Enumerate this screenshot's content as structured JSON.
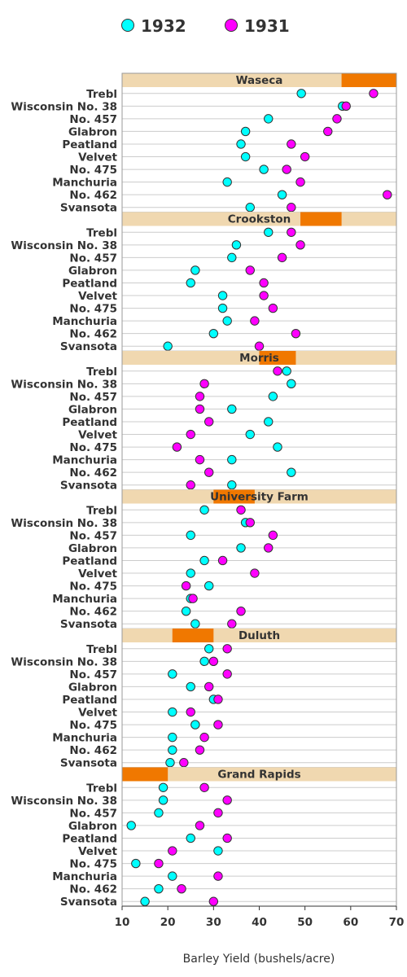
{
  "chart_data": {
    "type": "scatter",
    "xlabel": "Barley Yield (bushels/acre)",
    "xlim": [
      10,
      70
    ],
    "xticks": [
      10,
      20,
      30,
      40,
      50,
      60,
      70
    ],
    "grid": true,
    "legend_position": "top",
    "colors": {
      "1932": "#00ffff",
      "1931": "#ff00ff",
      "strip_bg": "#f0d8b0",
      "strip_marker": "#f07800",
      "grid": "#cccccc",
      "marker_stroke": "#333333"
    },
    "series": [
      {
        "name": "1932",
        "color": "#00ffff"
      },
      {
        "name": "1931",
        "color": "#ff00ff"
      }
    ],
    "varieties": [
      "Trebl",
      "Wisconsin No. 38",
      "No. 457",
      "Glabron",
      "Peatland",
      "Velvet",
      "No. 475",
      "Manchuria",
      "No. 462",
      "Svansota"
    ],
    "panels": [
      {
        "site": "Waseca",
        "strip_range": [
          58,
          70
        ],
        "values_1932": [
          49.2,
          58.2,
          42.0,
          37.0,
          36.0,
          37.0,
          41.0,
          33.0,
          45.0,
          38.0
        ],
        "values_1931": [
          65.0,
          59.0,
          57.0,
          55.0,
          47.0,
          50.0,
          46.0,
          49.0,
          68.0,
          47.0
        ]
      },
      {
        "site": "Crookston",
        "strip_range": [
          49,
          58
        ],
        "values_1932": [
          42.0,
          35.0,
          34.0,
          26.0,
          25.0,
          32.0,
          32.0,
          33.0,
          30.0,
          20.0
        ],
        "values_1931": [
          47.0,
          49.0,
          45.0,
          38.0,
          41.0,
          41.0,
          43.0,
          39.0,
          48.0,
          40.0
        ]
      },
      {
        "site": "Morris",
        "strip_range": [
          40,
          48
        ],
        "values_1932": [
          46.0,
          47.0,
          43.0,
          34.0,
          42.0,
          38.0,
          44.0,
          34.0,
          47.0,
          34.0
        ],
        "values_1931": [
          44.0,
          28.0,
          27.0,
          27.0,
          29.0,
          25.0,
          22.0,
          27.0,
          29.0,
          25.0
        ]
      },
      {
        "site": "University Farm",
        "strip_range": [
          30,
          39
        ],
        "values_1932": [
          28.0,
          37.0,
          25.0,
          36.0,
          28.0,
          25.0,
          29.0,
          25.0,
          24.0,
          26.0
        ],
        "values_1931": [
          36.0,
          38.0,
          43.0,
          42.0,
          32.0,
          39.0,
          24.0,
          25.5,
          36.0,
          34.0
        ]
      },
      {
        "site": "Duluth",
        "strip_range": [
          21,
          30
        ],
        "values_1932": [
          29.0,
          28.0,
          21.0,
          25.0,
          30.0,
          21.0,
          26.0,
          21.0,
          21.0,
          20.5
        ],
        "values_1931": [
          33.0,
          30.0,
          33.0,
          29.0,
          31.0,
          25.0,
          31.0,
          28.0,
          27.0,
          23.5
        ]
      },
      {
        "site": "Grand Rapids",
        "strip_range": [
          10,
          20
        ],
        "values_1932": [
          19.0,
          19.0,
          18.0,
          12.0,
          25.0,
          31.0,
          13.0,
          21.0,
          18.0,
          15.0
        ],
        "values_1931": [
          28.0,
          33.0,
          31.0,
          27.0,
          33.0,
          21.0,
          18.0,
          31.0,
          23.0,
          30.0
        ]
      }
    ]
  }
}
